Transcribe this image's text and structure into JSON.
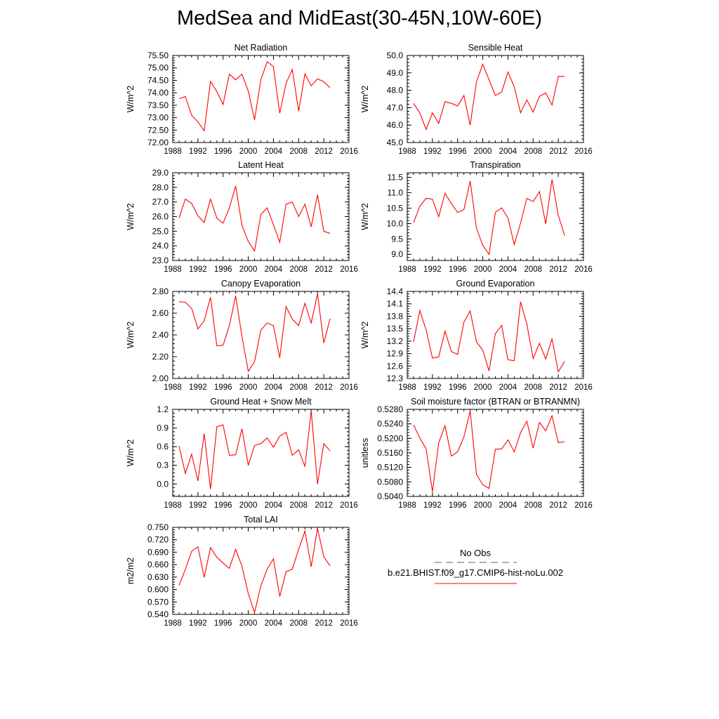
{
  "title": "MedSea and MidEast(30-45N,10W-60E)",
  "colors": {
    "model": "#ff0000",
    "obs": "#5b5b99",
    "axis": "#000000"
  },
  "legend": {
    "obs_label": "No Obs",
    "model_label": "b.e21.BHIST.f09_g17.CMIP6-hist-noLu.002"
  },
  "chart_data": [
    {
      "type": "line",
      "title": "Net Radiation",
      "ylabel": "W/m^2",
      "xlim": [
        1988,
        2016
      ],
      "xticks": [
        "1988",
        "1992",
        "1996",
        "2000",
        "2004",
        "2008",
        "2012",
        "2016"
      ],
      "ylim": [
        72.0,
        75.5
      ],
      "yticks": [
        "72.00",
        "72.50",
        "73.00",
        "73.50",
        "74.00",
        "74.50",
        "75.00",
        "75.50"
      ],
      "x": [
        1989,
        1990,
        1991,
        1992,
        1993,
        1994,
        1995,
        1996,
        1997,
        1998,
        1999,
        2000,
        2001,
        2002,
        2003,
        2004,
        2005,
        2006,
        2007,
        2008,
        2009,
        2010,
        2011,
        2012,
        2013
      ],
      "series": [
        {
          "values": [
            73.76,
            73.85,
            73.1,
            72.83,
            72.47,
            74.46,
            74.05,
            73.53,
            74.75,
            74.52,
            74.75,
            74.07,
            72.91,
            74.52,
            75.25,
            75.05,
            73.18,
            74.38,
            74.94,
            73.26,
            74.76,
            74.28,
            74.56,
            74.45,
            74.2
          ]
        }
      ]
    },
    {
      "type": "line",
      "title": "Sensible Heat",
      "ylabel": "W/m^2",
      "xlim": [
        1988,
        2016
      ],
      "xticks": [
        "1988",
        "1992",
        "1996",
        "2000",
        "2004",
        "2008",
        "2012",
        "2016"
      ],
      "ylim": [
        45.0,
        50.0
      ],
      "yticks": [
        "45.0",
        "46.0",
        "47.0",
        "48.0",
        "49.0",
        "50.0"
      ],
      "x": [
        1989,
        1990,
        1991,
        1992,
        1993,
        1994,
        1995,
        1996,
        1997,
        1998,
        1999,
        2000,
        2001,
        2002,
        2003,
        2004,
        2005,
        2006,
        2007,
        2008,
        2009,
        2010,
        2011,
        2012,
        2013
      ],
      "series": [
        {
          "values": [
            47.25,
            46.7,
            45.75,
            46.7,
            46.1,
            47.35,
            47.25,
            47.1,
            47.7,
            46.0,
            48.5,
            49.5,
            48.6,
            47.7,
            47.9,
            49.05,
            48.2,
            46.7,
            47.45,
            46.75,
            47.65,
            47.85,
            47.15,
            48.8,
            48.8
          ]
        }
      ]
    },
    {
      "type": "line",
      "title": "Latent Heat",
      "ylabel": "W/m^2",
      "xlim": [
        1988,
        2016
      ],
      "xticks": [
        "1988",
        "1992",
        "1996",
        "2000",
        "2004",
        "2008",
        "2012",
        "2016"
      ],
      "ylim": [
        23.0,
        29.0
      ],
      "yticks": [
        "23.0",
        "24.0",
        "25.0",
        "26.0",
        "27.0",
        "28.0",
        "29.0"
      ],
      "x": [
        1989,
        1990,
        1991,
        1992,
        1993,
        1994,
        1995,
        1996,
        1997,
        1998,
        1999,
        2000,
        2001,
        2002,
        2003,
        2004,
        2005,
        2006,
        2007,
        2008,
        2009,
        2010,
        2011,
        2012,
        2013
      ],
      "series": [
        {
          "values": [
            25.9,
            27.2,
            26.9,
            26.05,
            25.6,
            27.2,
            25.9,
            25.55,
            26.6,
            28.1,
            25.4,
            24.3,
            23.65,
            26.15,
            26.6,
            25.45,
            24.25,
            26.85,
            27.0,
            26.0,
            26.85,
            25.3,
            27.5,
            25.0,
            24.85
          ]
        }
      ]
    },
    {
      "type": "line",
      "title": "Transpiration",
      "ylabel": "W/m^2",
      "xlim": [
        1988,
        2016
      ],
      "xticks": [
        "1988",
        "1992",
        "1996",
        "2000",
        "2004",
        "2008",
        "2012",
        "2016"
      ],
      "ylim": [
        8.8,
        11.65
      ],
      "yticks": [
        "9.0",
        "9.5",
        "10.0",
        "10.5",
        "11.0",
        "11.5"
      ],
      "x": [
        1989,
        1990,
        1991,
        1992,
        1993,
        1994,
        1995,
        1996,
        1997,
        1998,
        1999,
        2000,
        2001,
        2002,
        2003,
        2004,
        2005,
        2006,
        2007,
        2008,
        2009,
        2010,
        2011,
        2012,
        2013
      ],
      "series": [
        {
          "values": [
            10.03,
            10.56,
            10.82,
            10.79,
            10.22,
            10.98,
            10.65,
            10.36,
            10.45,
            11.38,
            9.84,
            9.29,
            9.0,
            10.36,
            10.51,
            10.18,
            9.32,
            10.02,
            10.82,
            10.71,
            11.04,
            9.99,
            11.43,
            10.27,
            9.61
          ]
        }
      ]
    },
    {
      "type": "line",
      "title": "Canopy Evaporation",
      "ylabel": "W/m^2",
      "xlim": [
        1988,
        2016
      ],
      "xticks": [
        "1988",
        "1992",
        "1996",
        "2000",
        "2004",
        "2008",
        "2012",
        "2016"
      ],
      "ylim": [
        2.0,
        2.8
      ],
      "yticks": [
        "2.00",
        "2.20",
        "2.40",
        "2.60",
        "2.80"
      ],
      "x": [
        1989,
        1990,
        1991,
        1992,
        1993,
        1994,
        1995,
        1996,
        1997,
        1998,
        1999,
        2000,
        2001,
        2002,
        2003,
        2004,
        2005,
        2006,
        2007,
        2008,
        2009,
        2010,
        2011,
        2012,
        2013
      ],
      "series": [
        {
          "values": [
            2.705,
            2.7,
            2.645,
            2.455,
            2.53,
            2.745,
            2.3,
            2.305,
            2.485,
            2.76,
            2.385,
            2.065,
            2.155,
            2.445,
            2.51,
            2.485,
            2.19,
            2.66,
            2.545,
            2.485,
            2.69,
            2.51,
            2.78,
            2.325,
            2.55
          ]
        }
      ]
    },
    {
      "type": "line",
      "title": "Ground Evaporation",
      "ylabel": "W/m^2",
      "xlim": [
        1988,
        2016
      ],
      "xticks": [
        "1988",
        "1992",
        "1996",
        "2000",
        "2004",
        "2008",
        "2012",
        "2016"
      ],
      "ylim": [
        12.3,
        14.4
      ],
      "yticks": [
        "12.3",
        "12.6",
        "12.9",
        "13.2",
        "13.5",
        "13.8",
        "14.1",
        "14.4"
      ],
      "x": [
        1989,
        1990,
        1991,
        1992,
        1993,
        1994,
        1995,
        1996,
        1997,
        1998,
        1999,
        2000,
        2001,
        2002,
        2003,
        2004,
        2005,
        2006,
        2007,
        2008,
        2009,
        2010,
        2011,
        2012,
        2013
      ],
      "series": [
        {
          "values": [
            13.18,
            13.94,
            13.47,
            12.79,
            12.82,
            13.44,
            12.95,
            12.88,
            13.66,
            13.93,
            13.18,
            12.98,
            12.48,
            13.38,
            13.58,
            12.75,
            12.73,
            14.15,
            13.62,
            12.78,
            13.15,
            12.77,
            13.26,
            12.46,
            12.71
          ]
        }
      ]
    },
    {
      "type": "line",
      "title": "Ground Heat + Snow Melt",
      "ylabel": "W/m^2",
      "xlim": [
        1988,
        2016
      ],
      "xticks": [
        "1988",
        "1992",
        "1996",
        "2000",
        "2004",
        "2008",
        "2012",
        "2016"
      ],
      "ylim": [
        -0.2,
        1.2
      ],
      "yticks": [
        "0.0",
        "0.3",
        "0.6",
        "0.9",
        "1.2"
      ],
      "x": [
        1989,
        1990,
        1991,
        1992,
        1993,
        1994,
        1995,
        1996,
        1997,
        1998,
        1999,
        2000,
        2001,
        2002,
        2003,
        2004,
        2005,
        2006,
        2007,
        2008,
        2009,
        2010,
        2011,
        2012,
        2013
      ],
      "series": [
        {
          "values": [
            0.61,
            0.17,
            0.48,
            0.05,
            0.81,
            -0.08,
            0.92,
            0.95,
            0.46,
            0.47,
            0.89,
            0.3,
            0.62,
            0.65,
            0.74,
            0.59,
            0.77,
            0.83,
            0.46,
            0.55,
            0.28,
            1.18,
            0.0,
            0.65,
            0.53
          ]
        }
      ]
    },
    {
      "type": "line",
      "title": "Soil moisture factor (BTRAN or BTRANMN)",
      "ylabel": "unitless",
      "xlim": [
        1988,
        2016
      ],
      "xticks": [
        "1988",
        "1992",
        "1996",
        "2000",
        "2004",
        "2008",
        "2012",
        "2016"
      ],
      "ylim": [
        0.504,
        0.528
      ],
      "yticks": [
        "0.5040",
        "0.5080",
        "0.5120",
        "0.5160",
        "0.5200",
        "0.5240",
        "0.5280"
      ],
      "x": [
        1989,
        1990,
        1991,
        1992,
        1993,
        1994,
        1995,
        1996,
        1997,
        1998,
        1999,
        2000,
        2001,
        2002,
        2003,
        2004,
        2005,
        2006,
        2007,
        2008,
        2009,
        2010,
        2011,
        2012,
        2013
      ],
      "series": [
        {
          "values": [
            0.5237,
            0.5201,
            0.5171,
            0.5053,
            0.5188,
            0.5235,
            0.5151,
            0.5163,
            0.5204,
            0.5276,
            0.5101,
            0.5072,
            0.5062,
            0.517,
            0.5171,
            0.5196,
            0.5163,
            0.5216,
            0.5247,
            0.5173,
            0.5244,
            0.5221,
            0.5262,
            0.5188,
            0.5191
          ]
        }
      ]
    },
    {
      "type": "line",
      "title": "Total LAI",
      "ylabel": "m2/m2",
      "xlim": [
        1988,
        2016
      ],
      "xticks": [
        "1988",
        "1992",
        "1996",
        "2000",
        "2004",
        "2008",
        "2012",
        "2016"
      ],
      "ylim": [
        0.54,
        0.75
      ],
      "yticks": [
        "0.540",
        "0.570",
        "0.600",
        "0.630",
        "0.660",
        "0.690",
        "0.720",
        "0.750"
      ],
      "x": [
        1989,
        1990,
        1991,
        1992,
        1993,
        1994,
        1995,
        1996,
        1997,
        1998,
        1999,
        2000,
        2001,
        2002,
        2003,
        2004,
        2005,
        2006,
        2007,
        2008,
        2009,
        2010,
        2011,
        2012,
        2013
      ],
      "series": [
        {
          "values": [
            0.61,
            0.648,
            0.692,
            0.703,
            0.629,
            0.701,
            0.678,
            0.664,
            0.651,
            0.697,
            0.656,
            0.59,
            0.544,
            0.609,
            0.649,
            0.674,
            0.583,
            0.643,
            0.649,
            0.697,
            0.741,
            0.655,
            0.748,
            0.679,
            0.657
          ]
        }
      ]
    }
  ]
}
